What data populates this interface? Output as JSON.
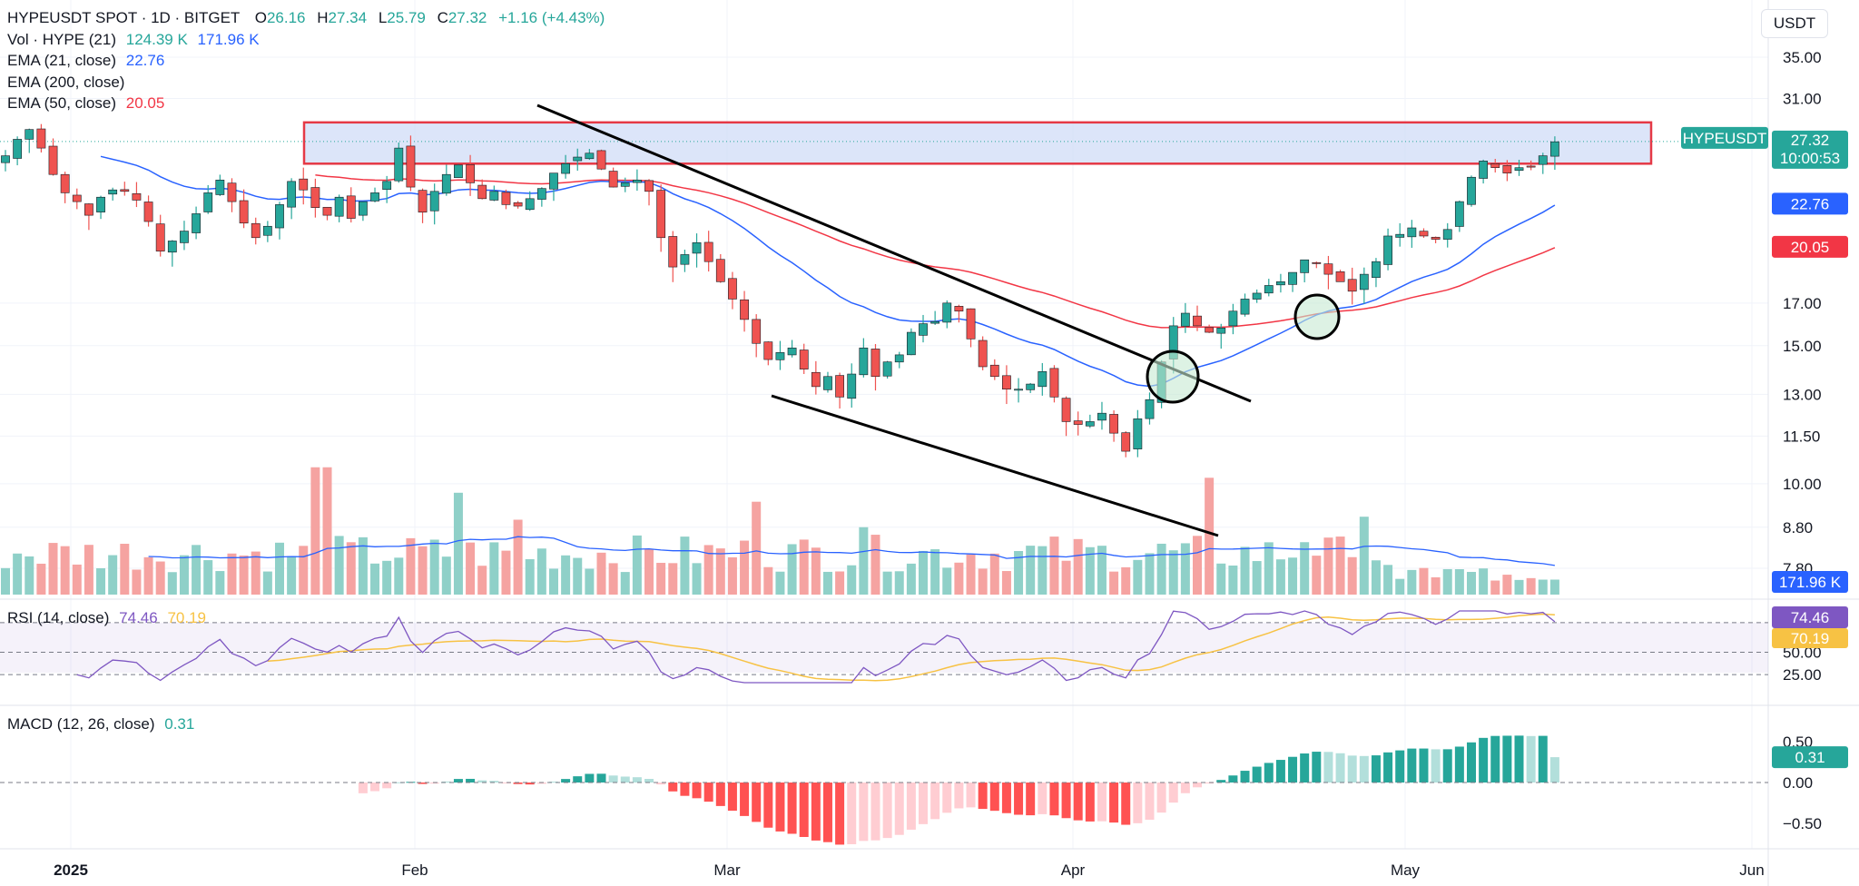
{
  "header": {
    "symbol": "HYPEUSDT SPOT · 1D · BITGET",
    "o_label": "O",
    "o": "26.16",
    "h_label": "H",
    "h": "27.34",
    "l_label": "L",
    "l": "25.79",
    "c_label": "C",
    "c": "27.32",
    "change": "+1.16 (+4.43%)"
  },
  "currency_button": "USDT",
  "legends": [
    {
      "label": "Vol · HYPE (21)",
      "values": [
        "124.39 K",
        "171.96 K"
      ],
      "colors": [
        "#26a69a",
        "#2962ff"
      ]
    },
    {
      "label": "EMA (21, close)",
      "values": [
        "22.76"
      ],
      "colors": [
        "#2962ff"
      ]
    },
    {
      "label": "EMA (200, close)",
      "values": [],
      "colors": []
    },
    {
      "label": "EMA (50, close)",
      "values": [
        "20.05"
      ],
      "colors": [
        "#f23645"
      ]
    }
  ],
  "rsi_legend": {
    "label": "RSI (14, close)",
    "values": [
      "74.46",
      "70.19"
    ]
  },
  "macd_legend": {
    "label": "MACD (12, 26, close)",
    "value": "0.31"
  },
  "badges": {
    "price_symbol": "HYPEUSDT",
    "price": "27.32",
    "countdown": "10:00:53",
    "ema21": "22.76",
    "ema50": "20.05",
    "volume": "171.96 K",
    "rsi": "74.46",
    "rsi_ma": "70.19",
    "macd": "0.31"
  },
  "colors": {
    "up": "#26a69a",
    "down": "#ef5350",
    "ema21": "#2962ff",
    "ema50": "#f23645",
    "rsi": "#7e57c2",
    "rsi_ma": "#f7c244",
    "zone_fill": "#d0dcf7",
    "zone_stroke": "#e53946"
  },
  "chart_data": {
    "type": "candlestick",
    "price_scale": "log",
    "price_ticks": [
      "35.00",
      "31.00",
      "27.32",
      "22.76",
      "20.05",
      "17.00",
      "15.00",
      "13.00",
      "11.50",
      "10.00",
      "8.80",
      "7.80"
    ],
    "x_ticks": [
      "2025",
      "Feb",
      "Mar",
      "Apr",
      "May",
      "Jun"
    ],
    "rsi_ticks": [
      "74.46",
      "70.19",
      "50.00",
      "25.00"
    ],
    "macd_ticks": [
      "0.50",
      "0.31",
      "0.00",
      "−0.50"
    ],
    "close_path": [
      26.2,
      27.5,
      28.3,
      26.8,
      24.8,
      23.5,
      22.9,
      22.0,
      23.2,
      23.7,
      23.6,
      23.0,
      21.6,
      19.8,
      20.4,
      21.0,
      22.1,
      23.5,
      24.4,
      22.9,
      21.5,
      20.6,
      21.3,
      22.7,
      24.3,
      23.7,
      22.5,
      22.0,
      23.2,
      21.8,
      22.9,
      23.5,
      24.3,
      26.8,
      23.9,
      22.2,
      23.6,
      24.8,
      25.5,
      24.2,
      23.1,
      23.6,
      22.7,
      22.6,
      23.1,
      23.8,
      24.9,
      25.6,
      26.1,
      26.4,
      25.2,
      23.9,
      24.2,
      24.4,
      23.6,
      20.6,
      18.9,
      19.6,
      20.3,
      19.2,
      18.1,
      17.2,
      16.2,
      15.1,
      14.4,
      14.7,
      14.9,
      14.0,
      13.3,
      13.7,
      12.9,
      13.8,
      14.9,
      13.7,
      14.3,
      14.6,
      15.6,
      16.0,
      16.1,
      17.0,
      16.6,
      15.3,
      14.1,
      13.7,
      13.2,
      13.2,
      13.4,
      13.9,
      12.9,
      12.0,
      11.9,
      12.0,
      12.3,
      11.6,
      11.0,
      12.1,
      12.8,
      14.3,
      15.9,
      16.5,
      15.9,
      15.6,
      15.8,
      16.6,
      17.2,
      17.5,
      17.9,
      18.1,
      18.6,
      19.3,
      19.1,
      18.5,
      18.1,
      17.6,
      18.5,
      19.2,
      20.7,
      20.8,
      21.2,
      20.7,
      20.5,
      21.1,
      22.9,
      24.6,
      25.8,
      25.3,
      24.9,
      25.3,
      25.4,
      26.2,
      27.3
    ],
    "volume_k": {
      "last": "124.39 K",
      "ma": "171.96 K"
    },
    "ema_21_last": 22.76,
    "ema_50_last": 20.05,
    "resistance_zone": [
      25.6,
      28.9
    ],
    "rsi": {
      "period": 14,
      "last": 74.46,
      "ma_last": 70.19,
      "upper": 70,
      "middle": 50,
      "lower": 30
    },
    "macd": {
      "fast": 12,
      "slow": 26,
      "last": 0.31
    },
    "annotations": [
      "falling-wedge",
      "breakout-circle",
      "ema-cross-circle"
    ]
  }
}
